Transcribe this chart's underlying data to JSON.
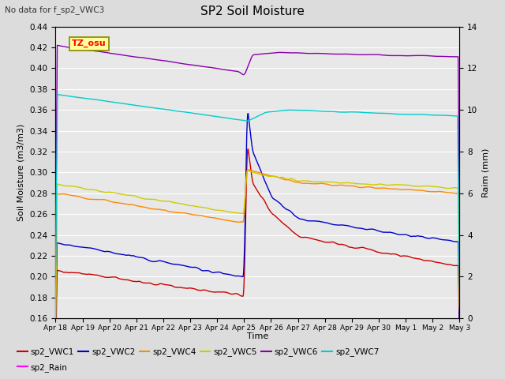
{
  "title": "SP2 Soil Moisture",
  "subtitle": "No data for f_sp2_VWC3",
  "xlabel": "Time",
  "ylabel_left": "Soil Moisture (m3/m3)",
  "ylabel_right": "Raim (mm)",
  "watermark": "TZ_osu",
  "ylim_left": [
    0.16,
    0.44
  ],
  "ylim_right": [
    0,
    14
  ],
  "xtick_labels": [
    "Apr 18",
    "Apr 19",
    "Apr 20",
    "Apr 21",
    "Apr 22",
    "Apr 23",
    "Apr 24",
    "Apr 25",
    "Apr 26",
    "Apr 27",
    "Apr 28",
    "Apr 29",
    "Apr 30",
    "May 1",
    "May 2",
    "May 3"
  ],
  "background_color": "#dcdcdc",
  "plot_bg_color": "#e8e8e8",
  "line_colors": {
    "VWC1": "#cc0000",
    "VWC2": "#0000cc",
    "VWC4": "#ff8800",
    "VWC5": "#cccc00",
    "VWC6": "#8800aa",
    "VWC7": "#00cccc",
    "Rain": "#ff00ff"
  },
  "legend_order": [
    "sp2_VWC1",
    "sp2_VWC2",
    "sp2_VWC4",
    "sp2_VWC5",
    "sp2_VWC6",
    "sp2_VWC7",
    "sp2_Rain"
  ]
}
